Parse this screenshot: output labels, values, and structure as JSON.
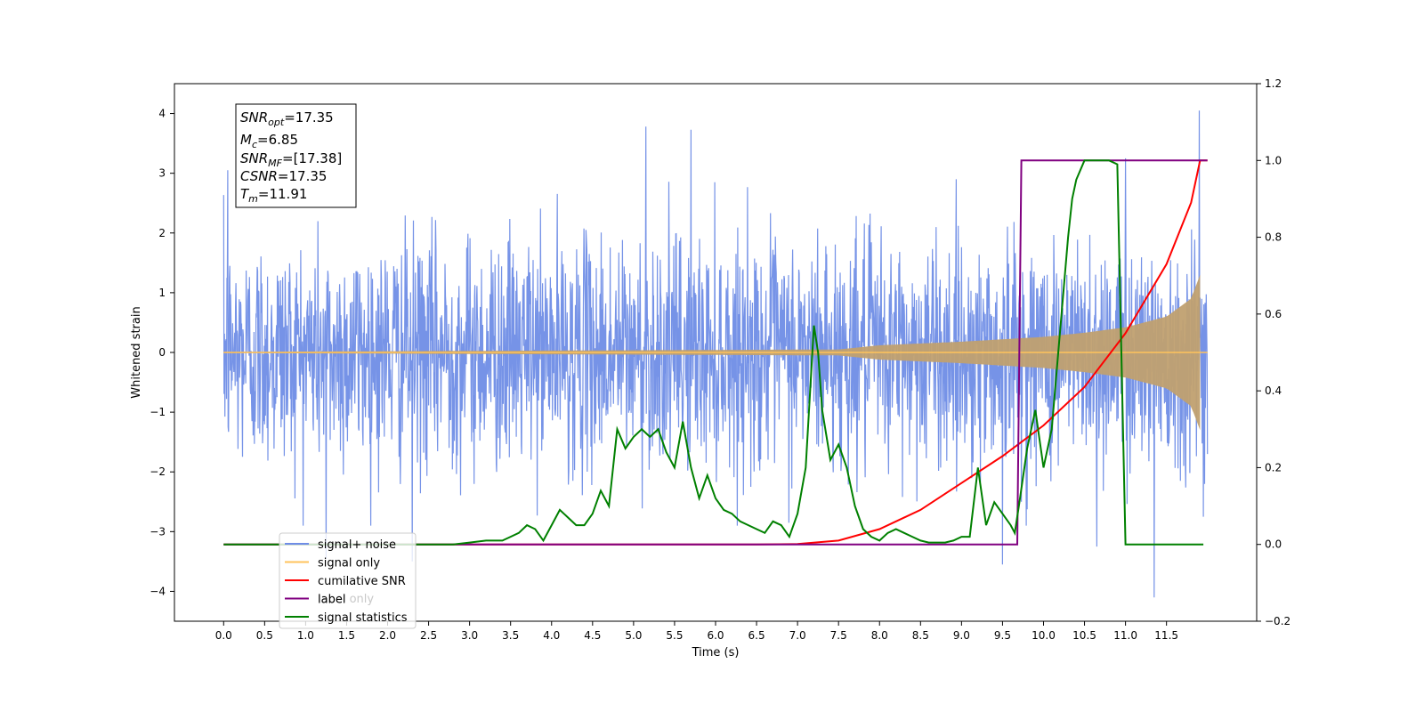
{
  "chart_data": {
    "type": "line",
    "xlabel": "Time (s)",
    "ylabel_left": "Whitened strain",
    "xlim": [
      -0.6,
      12.6
    ],
    "ylim_left": [
      -4.5,
      4.5
    ],
    "ylim_right": [
      -0.2,
      1.2
    ],
    "x_ticks": [
      "0.0",
      "0.5",
      "1.0",
      "1.5",
      "2.0",
      "2.5",
      "3.0",
      "3.5",
      "4.0",
      "4.5",
      "5.0",
      "5.5",
      "6.0",
      "6.5",
      "7.0",
      "7.5",
      "8.0",
      "8.5",
      "9.0",
      "9.5",
      "10.0",
      "10.5",
      "11.0",
      "11.5"
    ],
    "y_ticks_left": [
      "4",
      "3",
      "2",
      "1",
      "0",
      "−1",
      "−2",
      "−3",
      "−4"
    ],
    "y_ticks_right": [
      "1.2",
      "1.0",
      "0.8",
      "0.6",
      "0.4",
      "0.2",
      "0.0",
      "−0.2"
    ],
    "annotation": {
      "snr_opt": "17.35",
      "mc": "6.85",
      "snr_mf": "[17.38]",
      "csnr": "17.35",
      "tm": "11.91"
    },
    "legend": {
      "placement": "lower-left",
      "entries": [
        {
          "label": "signal+ noise",
          "color": "#6f8de6"
        },
        {
          "label": "signal only",
          "color": "#ffc35c"
        },
        {
          "label": "cumilative SNR",
          "color": "#ff0000"
        },
        {
          "label": "label",
          "color": "#800080"
        },
        {
          "label": "signal statistics",
          "color": "#008000"
        }
      ],
      "partial_hidden_label": "label only"
    },
    "series": [
      {
        "name": "signal+ noise",
        "axis": "left",
        "color": "#6f8de6",
        "t_range": [
          0.0,
          12.0
        ],
        "noise_std": 1.0,
        "peak_spikes": [
          [
            0.05,
            3.05
          ],
          [
            1.25,
            -3.45
          ],
          [
            2.3,
            -3.5
          ],
          [
            5.15,
            3.78
          ],
          [
            5.7,
            3.73
          ],
          [
            9.5,
            -3.55
          ],
          [
            10.65,
            -3.25
          ],
          [
            11.0,
            3.25
          ],
          [
            11.35,
            -4.1
          ],
          [
            11.9,
            4.05
          ],
          [
            11.95,
            -2.75
          ]
        ]
      },
      {
        "name": "signal only",
        "axis": "left",
        "color": "#ffc35c",
        "t_range": [
          0.0,
          12.0
        ],
        "envelope": [
          [
            0.0,
            0.01
          ],
          [
            7.5,
            0.05
          ],
          [
            8.0,
            0.12
          ],
          [
            9.0,
            0.18
          ],
          [
            10.0,
            0.26
          ],
          [
            10.5,
            0.33
          ],
          [
            11.0,
            0.42
          ],
          [
            11.5,
            0.6
          ],
          [
            11.8,
            0.9
          ],
          [
            11.91,
            1.3
          ]
        ]
      },
      {
        "name": "cumilative SNR",
        "axis": "right",
        "color": "#ff0000",
        "x": [
          0.0,
          6.5,
          7.0,
          7.5,
          8.0,
          8.5,
          9.0,
          9.5,
          10.0,
          10.5,
          11.0,
          11.5,
          11.8,
          11.91,
          12.0
        ],
        "y": [
          0.0,
          0.0,
          0.001,
          0.01,
          0.04,
          0.09,
          0.16,
          0.23,
          0.31,
          0.41,
          0.55,
          0.73,
          0.89,
          1.0,
          1.0
        ]
      },
      {
        "name": "label",
        "axis": "right",
        "color": "#800080",
        "x": [
          0.0,
          9.68,
          9.73,
          11.91,
          12.0
        ],
        "y": [
          0.0,
          0.0,
          1.0,
          1.0,
          1.0
        ]
      },
      {
        "name": "signal statistics",
        "axis": "right",
        "color": "#008000",
        "x": [
          0.0,
          2.8,
          3.0,
          3.2,
          3.4,
          3.5,
          3.6,
          3.7,
          3.8,
          3.9,
          4.0,
          4.1,
          4.2,
          4.3,
          4.4,
          4.5,
          4.6,
          4.7,
          4.8,
          4.9,
          5.0,
          5.1,
          5.2,
          5.3,
          5.4,
          5.5,
          5.6,
          5.7,
          5.8,
          5.9,
          6.0,
          6.1,
          6.2,
          6.3,
          6.4,
          6.5,
          6.6,
          6.7,
          6.8,
          6.9,
          7.0,
          7.1,
          7.2,
          7.25,
          7.3,
          7.4,
          7.5,
          7.6,
          7.7,
          7.8,
          7.9,
          8.0,
          8.1,
          8.2,
          8.3,
          8.4,
          8.5,
          8.6,
          8.7,
          8.8,
          8.9,
          9.0,
          9.1,
          9.2,
          9.3,
          9.4,
          9.5,
          9.6,
          9.65,
          9.7,
          9.8,
          9.9,
          10.0,
          10.1,
          10.2,
          10.3,
          10.35,
          10.4,
          10.5,
          10.6,
          10.7,
          10.8,
          10.9,
          11.0,
          11.1,
          11.5,
          11.8,
          11.85,
          11.9,
          11.95
        ],
        "y": [
          0.0,
          0.0,
          0.005,
          0.01,
          0.01,
          0.02,
          0.03,
          0.05,
          0.04,
          0.01,
          0.05,
          0.09,
          0.07,
          0.05,
          0.05,
          0.08,
          0.14,
          0.1,
          0.3,
          0.25,
          0.28,
          0.3,
          0.28,
          0.3,
          0.24,
          0.2,
          0.32,
          0.2,
          0.12,
          0.18,
          0.12,
          0.09,
          0.08,
          0.06,
          0.05,
          0.04,
          0.03,
          0.06,
          0.05,
          0.02,
          0.08,
          0.2,
          0.57,
          0.5,
          0.35,
          0.22,
          0.26,
          0.2,
          0.1,
          0.04,
          0.02,
          0.01,
          0.03,
          0.04,
          0.03,
          0.02,
          0.01,
          0.005,
          0.005,
          0.005,
          0.01,
          0.02,
          0.02,
          0.2,
          0.05,
          0.11,
          0.08,
          0.05,
          0.03,
          0.1,
          0.25,
          0.35,
          0.2,
          0.3,
          0.55,
          0.8,
          0.9,
          0.95,
          1.0,
          1.0,
          1.0,
          1.0,
          0.99,
          0.0,
          0.0,
          0.0,
          0.0,
          0.0,
          0.0,
          0.0
        ]
      }
    ]
  }
}
